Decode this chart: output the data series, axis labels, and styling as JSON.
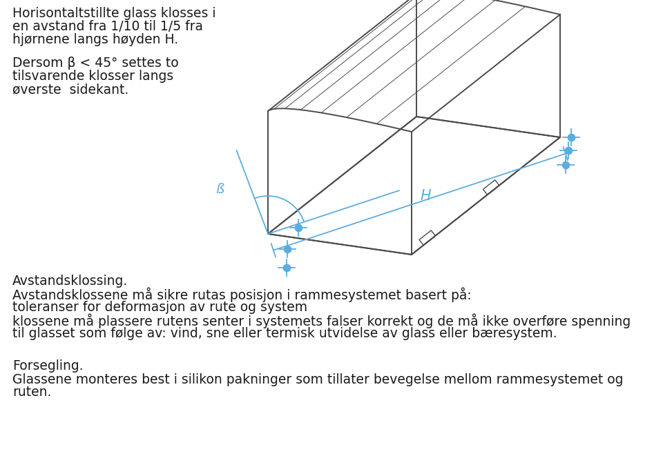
{
  "bg_color": "#ffffff",
  "diagram_color": "#5aade0",
  "glass_outline_color": "#4a4a4a",
  "text_color": "#1a1a1a",
  "title1": "Horisontaltstillte glass klosses i",
  "title2": "en avstand fra 1/10 til 1/5 fra",
  "title3": "hjørnene langs høyden H.",
  "title4": "Dersom β < 45° settes to",
  "title5": "tilsvarende klosser langs",
  "title6": "øverste  sidekant.",
  "section1_title": "Avstandsklossing.",
  "section1_line1": "Avstandsklossene må sikre rutas posisjon i rammesystemet basert på:",
  "section1_line2": "toleranser for deformasjon av rute og system",
  "section1_line3": "klossene må plassere rutens senter i systemets falser korrekt og de må ikke overføre spenning",
  "section1_line4": "til glasset som følge av: vind, sne eller termisk utvidelse av glass eller bæresystem.",
  "section2_title": "Forsegling.",
  "section2_line1": "Glassene monteres best i silikon pakninger som tillater bevegelse mellom rammesystemet og",
  "section2_line2": "ruten.",
  "font_size": 13.5
}
